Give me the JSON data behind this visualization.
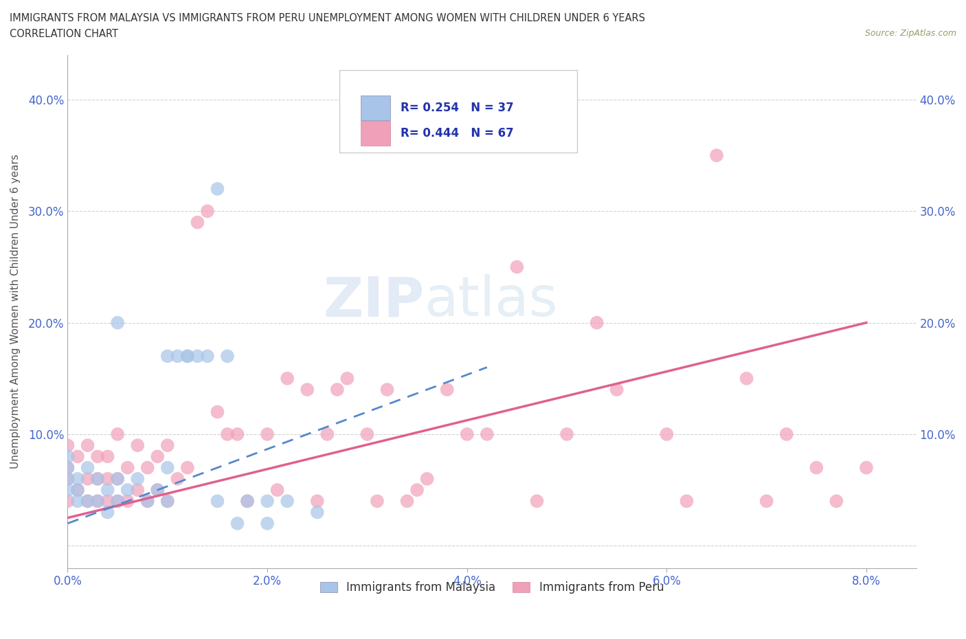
{
  "title_line1": "IMMIGRANTS FROM MALAYSIA VS IMMIGRANTS FROM PERU UNEMPLOYMENT AMONG WOMEN WITH CHILDREN UNDER 6 YEARS",
  "title_line2": "CORRELATION CHART",
  "source_text": "Source: ZipAtlas.com",
  "ylabel": "Unemployment Among Women with Children Under 6 years",
  "xlim": [
    0.0,
    0.085
  ],
  "ylim": [
    -0.02,
    0.44
  ],
  "xtick_labels": [
    "0.0%",
    "2.0%",
    "4.0%",
    "6.0%",
    "8.0%"
  ],
  "xtick_vals": [
    0.0,
    0.02,
    0.04,
    0.06,
    0.08
  ],
  "ytick_labels": [
    "",
    "10.0%",
    "20.0%",
    "30.0%",
    "40.0%"
  ],
  "ytick_vals": [
    0.0,
    0.1,
    0.2,
    0.3,
    0.4
  ],
  "malaysia_color": "#a8c4e8",
  "peru_color": "#f0a0b8",
  "malaysia_R": 0.254,
  "malaysia_N": 37,
  "peru_R": 0.444,
  "peru_N": 67,
  "malaysia_line_color": "#5588cc",
  "peru_line_color": "#e06090",
  "legend_label_malaysia": "Immigrants from Malaysia",
  "legend_label_peru": "Immigrants from Peru",
  "watermark_zip": "ZIP",
  "watermark_atlas": "atlas",
  "background_color": "#ffffff",
  "grid_color": "#cccccc",
  "malaysia_x": [
    0.0,
    0.0,
    0.0,
    0.0,
    0.001,
    0.001,
    0.001,
    0.002,
    0.002,
    0.003,
    0.003,
    0.004,
    0.004,
    0.005,
    0.005,
    0.006,
    0.007,
    0.008,
    0.009,
    0.01,
    0.01,
    0.011,
    0.012,
    0.013,
    0.014,
    0.015,
    0.016,
    0.017,
    0.018,
    0.02,
    0.022,
    0.025,
    0.01,
    0.012,
    0.015,
    0.02,
    0.005
  ],
  "malaysia_y": [
    0.05,
    0.06,
    0.07,
    0.08,
    0.04,
    0.05,
    0.06,
    0.04,
    0.07,
    0.04,
    0.06,
    0.03,
    0.05,
    0.04,
    0.06,
    0.05,
    0.06,
    0.04,
    0.05,
    0.04,
    0.07,
    0.17,
    0.17,
    0.17,
    0.17,
    0.32,
    0.17,
    0.02,
    0.04,
    0.02,
    0.04,
    0.03,
    0.17,
    0.17,
    0.04,
    0.04,
    0.2
  ],
  "peru_x": [
    0.0,
    0.0,
    0.0,
    0.0,
    0.001,
    0.001,
    0.002,
    0.002,
    0.002,
    0.003,
    0.003,
    0.003,
    0.004,
    0.004,
    0.004,
    0.005,
    0.005,
    0.005,
    0.006,
    0.006,
    0.007,
    0.007,
    0.008,
    0.008,
    0.009,
    0.009,
    0.01,
    0.01,
    0.011,
    0.012,
    0.013,
    0.014,
    0.015,
    0.016,
    0.017,
    0.018,
    0.02,
    0.021,
    0.022,
    0.024,
    0.025,
    0.026,
    0.027,
    0.028,
    0.03,
    0.031,
    0.032,
    0.034,
    0.035,
    0.036,
    0.038,
    0.04,
    0.042,
    0.045,
    0.047,
    0.05,
    0.053,
    0.055,
    0.06,
    0.062,
    0.065,
    0.068,
    0.07,
    0.072,
    0.075,
    0.077,
    0.08
  ],
  "peru_y": [
    0.04,
    0.06,
    0.07,
    0.09,
    0.05,
    0.08,
    0.04,
    0.06,
    0.09,
    0.04,
    0.06,
    0.08,
    0.04,
    0.06,
    0.08,
    0.04,
    0.06,
    0.1,
    0.04,
    0.07,
    0.05,
    0.09,
    0.04,
    0.07,
    0.05,
    0.08,
    0.04,
    0.09,
    0.06,
    0.07,
    0.29,
    0.3,
    0.12,
    0.1,
    0.1,
    0.04,
    0.1,
    0.05,
    0.15,
    0.14,
    0.04,
    0.1,
    0.14,
    0.15,
    0.1,
    0.04,
    0.14,
    0.04,
    0.05,
    0.06,
    0.14,
    0.1,
    0.1,
    0.25,
    0.04,
    0.1,
    0.2,
    0.14,
    0.1,
    0.04,
    0.35,
    0.15,
    0.04,
    0.1,
    0.07,
    0.04,
    0.07
  ],
  "malaysia_line_x": [
    0.0,
    0.042
  ],
  "malaysia_line_y": [
    0.02,
    0.16
  ],
  "peru_line_x": [
    0.0,
    0.08
  ],
  "peru_line_y": [
    0.025,
    0.2
  ]
}
